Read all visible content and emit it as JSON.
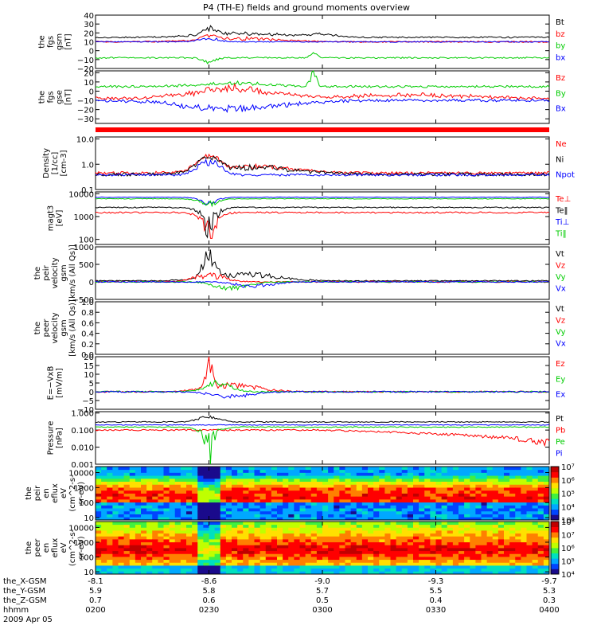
{
  "title": "P4 (TH-E) fields and ground moments overview",
  "colors": {
    "black": "#000000",
    "red": "#ff0000",
    "green": "#00cc00",
    "blue": "#0000ff"
  },
  "chart_data": {
    "type": "line",
    "time_axis": {
      "label": "hhmm",
      "ticks": [
        "0200",
        "0230",
        "0300",
        "0330",
        "0400"
      ],
      "date": "2009 Apr 05",
      "ephemeris": [
        {
          "label": "the_X-GSM",
          "values": [
            "-8.1",
            "-8.6",
            "-9.0",
            "-9.3",
            "-9.7"
          ]
        },
        {
          "label": "the_Y-GSM",
          "values": [
            "5.9",
            "5.8",
            "5.7",
            "5.5",
            "5.3"
          ]
        },
        {
          "label": "the_Z-GSM",
          "values": [
            "0.7",
            "0.6",
            "0.5",
            "0.4",
            "0.3"
          ]
        }
      ]
    },
    "panels": [
      {
        "key": "fgs_gsm",
        "ylabel": [
          "the",
          "fgs",
          "gsm",
          "[nT]"
        ],
        "ylim": [
          -20,
          40
        ],
        "ticks": [
          -20,
          -10,
          0,
          10,
          20,
          30,
          40
        ],
        "tick_labels": [
          "−20",
          "−10",
          "0",
          "10",
          "20",
          "30",
          "40"
        ],
        "series": [
          {
            "name": "Bt",
            "color": "black",
            "base": 15,
            "noise": 0.8,
            "events": [
              [
                0.25,
                8,
                0.02
              ],
              [
                0.32,
                5,
                0.12
              ],
              [
                0.5,
                3,
                0.05
              ]
            ]
          },
          {
            "name": "bz",
            "color": "red",
            "base": 10,
            "noise": 0.8,
            "events": [
              [
                0.25,
                6,
                0.02
              ],
              [
                0.32,
                4,
                0.12
              ]
            ]
          },
          {
            "name": "by",
            "color": "green",
            "base": -8,
            "noise": 0.8,
            "events": [
              [
                0.25,
                -5,
                0.02
              ],
              [
                0.48,
                6,
                0.01
              ]
            ]
          },
          {
            "name": "bx",
            "color": "blue",
            "base": 10,
            "noise": 0.6,
            "events": [
              [
                0.25,
                4,
                0.03
              ]
            ]
          }
        ]
      },
      {
        "key": "fgs_gse",
        "ylabel": [
          "the",
          "fgs",
          "gse",
          "[nT]"
        ],
        "ylim": [
          -35,
          22
        ],
        "ticks": [
          -30,
          -20,
          -10,
          0,
          10,
          20
        ],
        "tick_labels": [
          "−30",
          "−20",
          "−10",
          "0",
          "10",
          "20"
        ],
        "series": [
          {
            "name": "Bz",
            "color": "red",
            "base": -8,
            "noise": 1.5,
            "events": [
              [
                0.3,
                12,
                0.12
              ],
              [
                0.7,
                4,
                0.2
              ]
            ]
          },
          {
            "name": "By",
            "color": "green",
            "base": 5,
            "noise": 1.2,
            "events": [
              [
                0.3,
                4,
                0.1
              ],
              [
                0.48,
                14,
                0.01
              ]
            ]
          },
          {
            "name": "Bx",
            "color": "blue",
            "base": -10,
            "noise": 1.5,
            "events": [
              [
                0.3,
                -10,
                0.15
              ]
            ]
          }
        ]
      },
      {
        "key": "density",
        "ylabel": [
          "Density",
          "[1/cc]",
          "[cm-3]"
        ],
        "log": true,
        "ylim": [
          0.1,
          12
        ],
        "ticks": [
          0.1,
          1.0,
          10.0
        ],
        "tick_labels": [
          "0.1",
          "1.0",
          "10.0"
        ],
        "series": [
          {
            "name": "Ne",
            "color": "red",
            "base": 0.45,
            "noise": 0.06,
            "events": [
              [
                0.25,
                1.5,
                0.03
              ],
              [
                0.35,
                0.4,
                0.12
              ]
            ]
          },
          {
            "name": "Ni",
            "color": "black",
            "base": 0.4,
            "noise": 0.06,
            "events": [
              [
                0.25,
                1.3,
                0.03
              ],
              [
                0.35,
                0.4,
                0.12
              ]
            ]
          },
          {
            "name": "Npot",
            "color": "blue",
            "base": 0.38,
            "noise": 0.04,
            "events": [
              [
                0.25,
                1.0,
                0.03
              ]
            ]
          }
        ]
      },
      {
        "key": "temperature",
        "ylabel": [
          "magt3",
          "[eV]"
        ],
        "log": true,
        "ylim": [
          60,
          12000
        ],
        "ticks": [
          100,
          1000,
          10000
        ],
        "tick_labels": [
          "100",
          "1000",
          "10000"
        ],
        "series": [
          {
            "name": "Te⊥",
            "color": "red",
            "base": 1500,
            "noise": 120,
            "events": [
              [
                0.25,
                -1200,
                0.03
              ]
            ]
          },
          {
            "name": "Te‖",
            "color": "black",
            "base": 2500,
            "noise": 150,
            "events": [
              [
                0.25,
                -2000,
                0.03
              ]
            ]
          },
          {
            "name": "Ti⊥",
            "color": "blue",
            "base": 7000,
            "noise": 200,
            "events": [
              [
                0.25,
                -3000,
                0.03
              ]
            ]
          },
          {
            "name": "Ti‖",
            "color": "green",
            "base": 6000,
            "noise": 200,
            "events": [
              [
                0.25,
                -2500,
                0.03
              ]
            ]
          }
        ]
      },
      {
        "key": "ion_velocity",
        "ylabel": [
          "the",
          "peir",
          "velocity",
          "gsm",
          "[km/s (All Qs)]"
        ],
        "ylim": [
          -500,
          1000
        ],
        "ticks": [
          -500,
          0,
          500,
          1000
        ],
        "tick_labels": [
          "−500",
          "0",
          "500",
          "1000"
        ],
        "series": [
          {
            "name": "Vt",
            "color": "black",
            "base": 30,
            "noise": 15,
            "events": [
              [
                0.25,
                700,
                0.02
              ],
              [
                0.33,
                200,
                0.1
              ]
            ]
          },
          {
            "name": "Vz",
            "color": "red",
            "base": 0,
            "noise": 20,
            "events": [
              [
                0.25,
                200,
                0.05
              ]
            ]
          },
          {
            "name": "Vy",
            "color": "green",
            "base": 0,
            "noise": 15,
            "events": [
              [
                0.3,
                -200,
                0.05
              ]
            ]
          },
          {
            "name": "Vx",
            "color": "blue",
            "base": 0,
            "noise": 15,
            "events": [
              [
                0.35,
                -150,
                0.05
              ]
            ]
          }
        ]
      },
      {
        "key": "electron_velocity",
        "ylabel": [
          "the",
          "peer",
          "velocity",
          "gsm",
          "[km/s (All Qs)]"
        ],
        "ylim": [
          0,
          1
        ],
        "ticks": [
          0,
          0.2,
          0.4,
          0.6,
          0.8,
          1.0
        ],
        "tick_labels": [
          "0.0",
          "0.2",
          "0.4",
          "0.6",
          "0.8",
          "1.0"
        ],
        "series": [
          {
            "name": "Vt",
            "color": "black"
          },
          {
            "name": "Vz",
            "color": "red"
          },
          {
            "name": "Vy",
            "color": "green"
          },
          {
            "name": "Vx",
            "color": "blue"
          }
        ]
      },
      {
        "key": "efield",
        "ylabel": [
          "E=−VxB",
          "[mV/m]"
        ],
        "ylim": [
          -10,
          20
        ],
        "ticks": [
          -10,
          -5,
          0,
          5,
          10,
          15,
          20
        ],
        "tick_labels": [
          "−10",
          "−5",
          "0",
          "5",
          "10",
          "15",
          "20"
        ],
        "series": [
          {
            "name": "Ez",
            "color": "red",
            "base": 0,
            "noise": 0.4,
            "events": [
              [
                0.25,
                17,
                0.01
              ],
              [
                0.3,
                4,
                0.08
              ]
            ]
          },
          {
            "name": "Ey",
            "color": "green",
            "base": 0,
            "noise": 0.4,
            "events": [
              [
                0.27,
                5,
                0.04
              ]
            ]
          },
          {
            "name": "Ex",
            "color": "blue",
            "base": 0,
            "noise": 0.4,
            "events": [
              [
                0.3,
                -3,
                0.06
              ]
            ]
          }
        ]
      },
      {
        "key": "pressure",
        "ylabel": [
          "Pressure",
          "[nPa]"
        ],
        "log": true,
        "ylim": [
          0.001,
          1.2
        ],
        "ticks": [
          0.001,
          0.01,
          0.1,
          1.0
        ],
        "tick_labels": [
          "0.001",
          "0.010",
          "0.100",
          "1.000"
        ],
        "series": [
          {
            "name": "Pt",
            "color": "black",
            "base": 0.3,
            "noise": 0.02,
            "events": [
              [
                0.25,
                0.3,
                0.03
              ]
            ]
          },
          {
            "name": "Pb",
            "color": "red",
            "base": 0.1,
            "noise": 0.01,
            "trend": -0.08
          },
          {
            "name": "Pe",
            "color": "green",
            "base": 0.15,
            "noise": 0.01,
            "events": [
              [
                0.25,
                -0.13,
                0.03
              ]
            ]
          },
          {
            "name": "Pi",
            "color": "blue",
            "base": 0.2,
            "noise": 0.01
          }
        ]
      }
    ],
    "spectrograms": [
      {
        "key": "peir_en_eflux",
        "ylabel": [
          "the",
          "peir",
          "en",
          "eflux",
          "eV",
          "(cm^2-s-",
          "sr-eV)"
        ],
        "log": true,
        "ylim": [
          7,
          25000
        ],
        "ticks": [
          10,
          100,
          1000,
          10000
        ],
        "tick_labels": [
          "10",
          "100",
          "1000",
          "10000"
        ],
        "colorbar": {
          "labels": [
            "10³",
            "10⁴",
            "10⁵",
            "10⁶",
            "10⁷"
          ]
        }
      },
      {
        "key": "peer_en_eflux",
        "ylabel": [
          "the",
          "peer",
          "en",
          "eflux",
          "eV",
          "(cm^2-s-",
          "sr-eV)"
        ],
        "log": true,
        "ylim": [
          7,
          25000
        ],
        "ticks": [
          10,
          100,
          1000,
          10000
        ],
        "tick_labels": [
          "10",
          "100",
          "1000",
          "10000"
        ],
        "colorbar": {
          "labels": [
            "10⁴",
            "10⁵",
            "10⁶",
            "10⁷",
            "10⁸"
          ]
        }
      }
    ]
  }
}
